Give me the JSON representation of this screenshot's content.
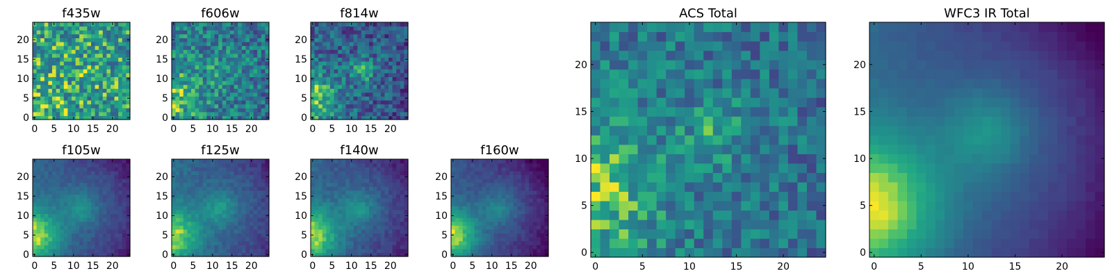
{
  "chart_data": [
    {
      "type": "heatmap",
      "title": "f435w",
      "xticks": [
        0,
        5,
        10,
        15,
        20
      ],
      "yticks": [
        0,
        5,
        10,
        15,
        20
      ],
      "xlim": [
        0,
        24
      ],
      "ylim": [
        0,
        24
      ],
      "grid_size": 25,
      "colormap": "viridis",
      "model": {
        "source_x": 0,
        "source_y": 5,
        "source_amp": 0.12,
        "source_width": 4.5,
        "core_x": 12,
        "core_y": 12,
        "core_amp": 0.05,
        "core_width": 2.5,
        "base": 0.7,
        "edge_drop": 0.05,
        "noise": 0.3,
        "seed": 11
      }
    },
    {
      "type": "heatmap",
      "title": "f606w",
      "xticks": [
        0,
        5,
        10,
        15,
        20
      ],
      "yticks": [
        0,
        5,
        10,
        15,
        20
      ],
      "xlim": [
        0,
        24
      ],
      "ylim": [
        0,
        24
      ],
      "grid_size": 25,
      "colormap": "viridis",
      "model": {
        "source_x": 0,
        "source_y": 5,
        "source_amp": 0.3,
        "source_width": 5,
        "core_x": 12,
        "core_y": 12,
        "core_amp": 0.12,
        "core_width": 2.5,
        "base": 0.55,
        "edge_drop": 0.1,
        "noise": 0.26,
        "seed": 23
      }
    },
    {
      "type": "heatmap",
      "title": "f814w",
      "xticks": [
        0,
        5,
        10,
        15,
        20
      ],
      "yticks": [
        0,
        5,
        10,
        15,
        20
      ],
      "xlim": [
        0,
        24
      ],
      "ylim": [
        0,
        24
      ],
      "grid_size": 25,
      "colormap": "viridis",
      "model": {
        "source_x": 0,
        "source_y": 5,
        "source_amp": 0.45,
        "source_width": 5,
        "core_x": 13,
        "core_y": 12,
        "core_amp": 0.35,
        "core_width": 2.2,
        "base": 0.4,
        "edge_drop": 0.12,
        "noise": 0.24,
        "seed": 37
      }
    },
    {
      "type": "heatmap",
      "title": "f105w",
      "xticks": [
        0,
        5,
        10,
        15,
        20
      ],
      "yticks": [
        0,
        5,
        10,
        15,
        20
      ],
      "xlim": [
        0,
        24
      ],
      "ylim": [
        0,
        24
      ],
      "grid_size": 25,
      "colormap": "viridis",
      "model": {
        "source_x": 0,
        "source_y": 5,
        "source_amp": 0.55,
        "source_width": 5,
        "core_x": 12,
        "core_y": 12,
        "core_amp": 0.22,
        "core_width": 3,
        "base": 0.42,
        "edge_drop": 0.32,
        "noise": 0.06,
        "seed": 41
      }
    },
    {
      "type": "heatmap",
      "title": "f125w",
      "xticks": [
        0,
        5,
        10,
        15,
        20
      ],
      "yticks": [
        0,
        5,
        10,
        15,
        20
      ],
      "xlim": [
        0,
        24
      ],
      "ylim": [
        0,
        24
      ],
      "grid_size": 25,
      "colormap": "viridis",
      "model": {
        "source_x": 0,
        "source_y": 5,
        "source_amp": 0.5,
        "source_width": 5,
        "core_x": 12,
        "core_y": 12,
        "core_amp": 0.22,
        "core_width": 3,
        "base": 0.45,
        "edge_drop": 0.28,
        "noise": 0.07,
        "seed": 53
      }
    },
    {
      "type": "heatmap",
      "title": "f140w",
      "xticks": [
        0,
        5,
        10,
        15,
        20
      ],
      "yticks": [
        0,
        5,
        10,
        15,
        20
      ],
      "xlim": [
        0,
        24
      ],
      "ylim": [
        0,
        24
      ],
      "grid_size": 25,
      "colormap": "viridis",
      "model": {
        "source_x": 0,
        "source_y": 5,
        "source_amp": 0.55,
        "source_width": 5,
        "core_x": 12,
        "core_y": 12,
        "core_amp": 0.22,
        "core_width": 3,
        "base": 0.42,
        "edge_drop": 0.32,
        "noise": 0.07,
        "seed": 67
      }
    },
    {
      "type": "heatmap",
      "title": "f160w",
      "xticks": [
        0,
        5,
        10,
        15,
        20
      ],
      "yticks": [
        0,
        5,
        10,
        15,
        20
      ],
      "xlim": [
        0,
        24
      ],
      "ylim": [
        0,
        24
      ],
      "grid_size": 25,
      "colormap": "viridis",
      "model": {
        "source_x": 0,
        "source_y": 5,
        "source_amp": 0.6,
        "source_width": 5,
        "core_x": 12,
        "core_y": 12,
        "core_amp": 0.2,
        "core_width": 3,
        "base": 0.36,
        "edge_drop": 0.36,
        "noise": 0.06,
        "seed": 71
      }
    },
    {
      "type": "heatmap",
      "title": "ACS Total",
      "xticks": [
        0,
        5,
        10,
        15,
        20
      ],
      "yticks": [
        0,
        5,
        10,
        15,
        20
      ],
      "xlim": [
        0,
        24
      ],
      "ylim": [
        0,
        24
      ],
      "grid_size": 25,
      "colormap": "viridis",
      "model": {
        "source_x": 0,
        "source_y": 6,
        "source_amp": 0.32,
        "source_width": 5,
        "core_x": 13,
        "core_y": 13,
        "core_amp": 0.18,
        "core_width": 2.5,
        "base": 0.52,
        "edge_drop": 0.1,
        "noise": 0.22,
        "seed": 83
      }
    },
    {
      "type": "heatmap",
      "title": "WFC3 IR Total",
      "xticks": [
        0,
        5,
        10,
        15,
        20
      ],
      "yticks": [
        0,
        5,
        10,
        15,
        20
      ],
      "xlim": [
        0,
        24
      ],
      "ylim": [
        0,
        24
      ],
      "grid_size": 25,
      "colormap": "viridis",
      "model": {
        "source_x": 0,
        "source_y": 5,
        "source_amp": 0.58,
        "source_width": 5.5,
        "core_x": 12,
        "core_y": 13,
        "core_amp": 0.22,
        "core_width": 3,
        "base": 0.42,
        "edge_drop": 0.4,
        "noise": 0.02,
        "seed": 97
      }
    }
  ]
}
